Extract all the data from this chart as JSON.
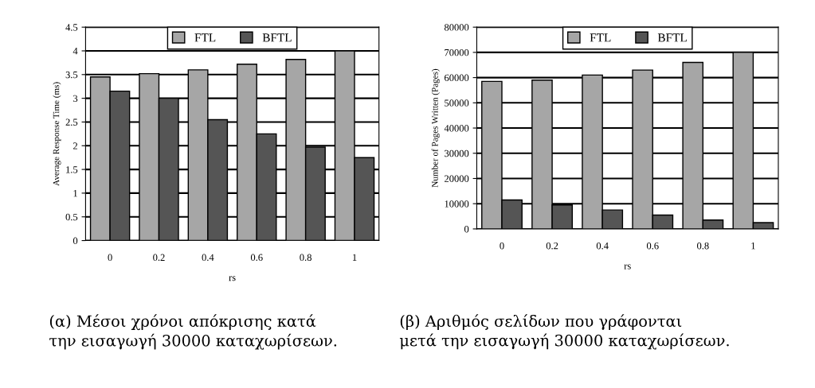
{
  "chart_data": [
    {
      "type": "bar",
      "categories": [
        "0",
        "0.2",
        "0.4",
        "0.6",
        "0.8",
        "1"
      ],
      "xlabel": "rs",
      "ylabel": "Average Response Time (ms)",
      "ylim": [
        0,
        4.5
      ],
      "yticks": [
        0,
        0.5,
        1,
        1.5,
        2,
        2.5,
        3,
        3.5,
        4,
        4.5
      ],
      "grid": "y",
      "legend": "top",
      "series": [
        {
          "name": "FTL",
          "color": "#a6a6a6",
          "values": [
            3.45,
            3.52,
            3.6,
            3.72,
            3.82,
            4.0
          ]
        },
        {
          "name": "BFTL",
          "color": "#555555",
          "values": [
            3.15,
            3.0,
            2.55,
            2.25,
            1.97,
            1.75
          ]
        }
      ],
      "annotations": [
        "(α) Μέσοι χρόνοι απόκρισης κατά\nτην εισαγωγή 30000 καταχωρίσεων."
      ]
    },
    {
      "type": "bar",
      "categories": [
        "0",
        "0.2",
        "0.4",
        "0.6",
        "0.8",
        "1"
      ],
      "xlabel": "rs",
      "ylabel": "Number of Pages Written (Pages)",
      "ylim": [
        0,
        80000
      ],
      "yticks": [
        0,
        10000,
        20000,
        30000,
        40000,
        50000,
        60000,
        70000,
        80000
      ],
      "grid": "y",
      "legend": "top",
      "series": [
        {
          "name": "FTL",
          "color": "#a6a6a6",
          "values": [
            58500,
            59000,
            61000,
            63000,
            66000,
            70000
          ]
        },
        {
          "name": "BFTL",
          "color": "#555555",
          "values": [
            11500,
            9500,
            7500,
            5500,
            3500,
            2500
          ]
        }
      ],
      "annotations": [
        "(β) Αριθμός σελίδων που γράφονται\nμετά την εισαγωγή 30000 καταχωρίσεων."
      ]
    }
  ]
}
